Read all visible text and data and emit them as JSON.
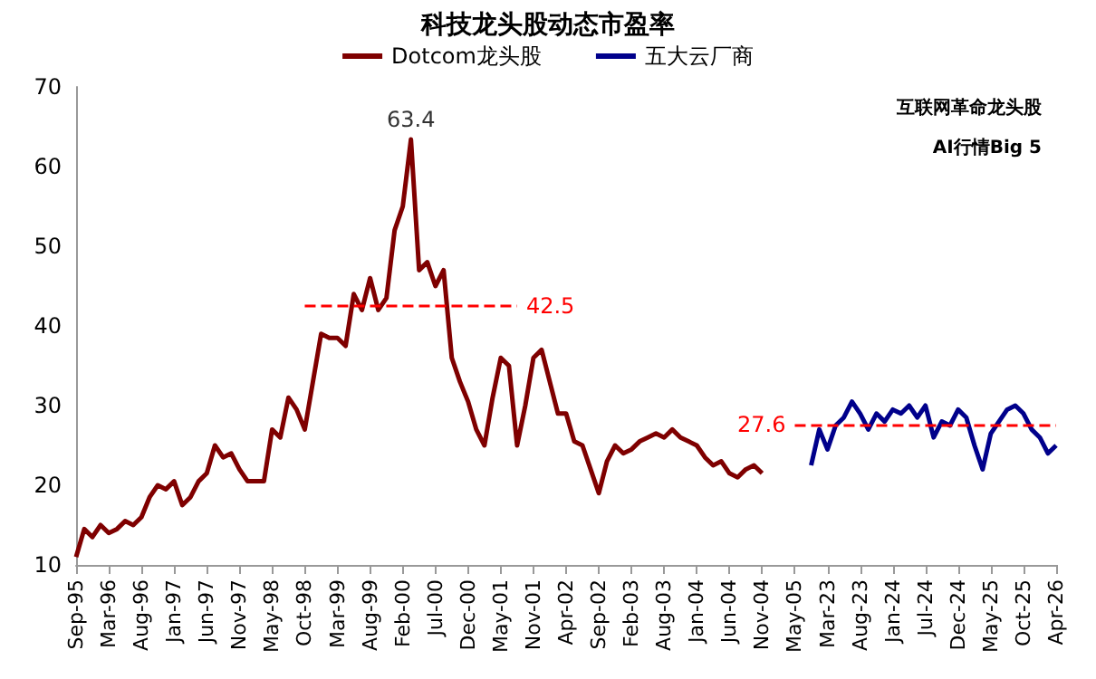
{
  "chart_data": {
    "type": "line",
    "title": "科技龙头股动态市盈率",
    "categories": [
      "Sep-95",
      null,
      null,
      null,
      "Mar-96",
      null,
      null,
      null,
      "Aug-96",
      null,
      null,
      null,
      "Jan-97",
      null,
      null,
      null,
      "Jun-97",
      null,
      null,
      null,
      "Nov-97",
      null,
      null,
      null,
      "May-98",
      null,
      null,
      null,
      "Oct-98",
      null,
      null,
      null,
      "Mar-99",
      null,
      null,
      null,
      "Aug-99",
      null,
      null,
      null,
      "Feb-00",
      null,
      null,
      null,
      "Jul-00",
      null,
      null,
      null,
      "Dec-00",
      null,
      null,
      null,
      "May-01",
      null,
      null,
      null,
      "Nov-01",
      null,
      null,
      null,
      "Apr-02",
      null,
      null,
      null,
      "Sep-02",
      null,
      null,
      null,
      "Feb-03",
      null,
      null,
      null,
      "Aug-03",
      null,
      null,
      null,
      "Jan-04",
      null,
      null,
      null,
      "Jun-04",
      null,
      null,
      null,
      "Nov-04",
      null,
      null,
      null,
      "May-05",
      null,
      null,
      null,
      "Mar-23",
      null,
      null,
      null,
      "Aug-23",
      null,
      null,
      null,
      "Jan-24",
      null,
      null,
      null,
      "Jul-24",
      null,
      null,
      null,
      "Dec-24",
      null,
      null,
      null,
      "May-25",
      null,
      null,
      null,
      "Oct-25",
      null,
      null,
      null,
      "Apr-26"
    ],
    "series": [
      {
        "name": "Dotcom龙头股",
        "color": "#7f0000",
        "values": [
          11,
          14.5,
          13.5,
          15,
          14,
          14.5,
          15.5,
          15,
          16,
          18.5,
          20,
          19.5,
          20.5,
          17.5,
          18.5,
          20.5,
          21.5,
          25,
          23.5,
          24,
          22,
          20.5,
          20.5,
          20.5,
          27,
          26,
          31,
          29.5,
          27,
          33,
          39,
          38.5,
          38.5,
          37.5,
          44,
          42,
          46,
          42,
          43.5,
          52,
          55,
          63.4,
          47,
          48,
          45,
          47,
          36,
          33,
          30.5,
          27,
          25,
          31,
          36,
          35,
          25,
          30,
          36,
          37,
          33,
          29,
          29,
          25.5,
          25,
          22,
          19,
          23,
          25,
          24,
          24.5,
          25.5,
          26,
          26.5,
          26,
          27,
          26,
          25.5,
          25,
          23.5,
          22.5,
          23,
          21.5,
          21,
          22,
          22.5,
          21.5,
          null,
          null,
          null,
          null,
          null,
          null,
          null,
          null,
          null,
          null,
          null,
          null,
          null,
          null,
          null,
          null,
          null,
          null,
          null,
          null,
          null,
          null,
          null,
          null,
          null,
          null,
          null,
          null,
          null,
          null,
          null,
          null,
          null,
          null,
          null,
          null
        ],
        "value_labels": [
          null,
          null,
          null,
          null,
          null,
          null,
          null,
          null,
          null,
          null,
          null,
          null,
          null,
          null,
          null,
          null,
          null,
          null,
          null,
          null,
          null,
          null,
          null,
          null,
          null,
          null,
          null,
          null,
          null,
          null,
          null,
          null,
          null,
          null,
          null,
          null,
          null,
          null,
          null,
          null,
          null,
          "63.4",
          null,
          null,
          null,
          null,
          null,
          null,
          null,
          null,
          null,
          null,
          null,
          null,
          null,
          null,
          null,
          null,
          null,
          null,
          null,
          null,
          null,
          null,
          null,
          null,
          null,
          null,
          null,
          null,
          null,
          null,
          null,
          null,
          null,
          null,
          null,
          null,
          null,
          null,
          null,
          null,
          null,
          null,
          null,
          null,
          null,
          null,
          null,
          null,
          null,
          null,
          null,
          null,
          null,
          null,
          null,
          null,
          null,
          null,
          null,
          null,
          null,
          null,
          null,
          null,
          null,
          null,
          null,
          null,
          null,
          null,
          null,
          null,
          null,
          null,
          null,
          null,
          null,
          null,
          null
        ]
      },
      {
        "name": "五大云厂商",
        "color": "#00008b",
        "values": [
          null,
          null,
          null,
          null,
          null,
          null,
          null,
          null,
          null,
          null,
          null,
          null,
          null,
          null,
          null,
          null,
          null,
          null,
          null,
          null,
          null,
          null,
          null,
          null,
          null,
          null,
          null,
          null,
          null,
          null,
          null,
          null,
          null,
          null,
          null,
          null,
          null,
          null,
          null,
          null,
          null,
          null,
          null,
          null,
          null,
          null,
          null,
          null,
          null,
          null,
          null,
          null,
          null,
          null,
          null,
          null,
          null,
          null,
          null,
          null,
          null,
          null,
          null,
          null,
          null,
          null,
          null,
          null,
          null,
          null,
          null,
          null,
          null,
          null,
          null,
          null,
          null,
          null,
          null,
          null,
          null,
          null,
          null,
          null,
          null,
          null,
          null,
          null,
          null,
          null,
          22.5,
          27,
          24.5,
          27.5,
          28.5,
          30.5,
          29,
          27,
          29,
          28,
          29.5,
          29,
          30,
          28.5,
          30,
          26,
          28,
          27.5,
          29.5,
          28.5,
          25,
          22,
          26.5,
          28,
          29.5,
          30,
          29,
          27,
          26,
          24,
          25
        ]
      }
    ],
    "ylim": [
      10,
      70
    ],
    "yticks": [
      10,
      20,
      30,
      40,
      50,
      60,
      70
    ],
    "ref_lines": [
      {
        "axis": "y",
        "value": 42.5,
        "label": "42.5",
        "color": "#ff0000",
        "line_style": "dashed"
      },
      {
        "axis": "y",
        "value": 27.6,
        "label": "27.6",
        "color": "#ff0000",
        "line_style": "dashed"
      }
    ],
    "annotations": [
      "互联网革命龙头股",
      "AI行情Big 5"
    ],
    "grid": false,
    "legend": "top",
    "marker": "none",
    "line_style": "solid"
  }
}
